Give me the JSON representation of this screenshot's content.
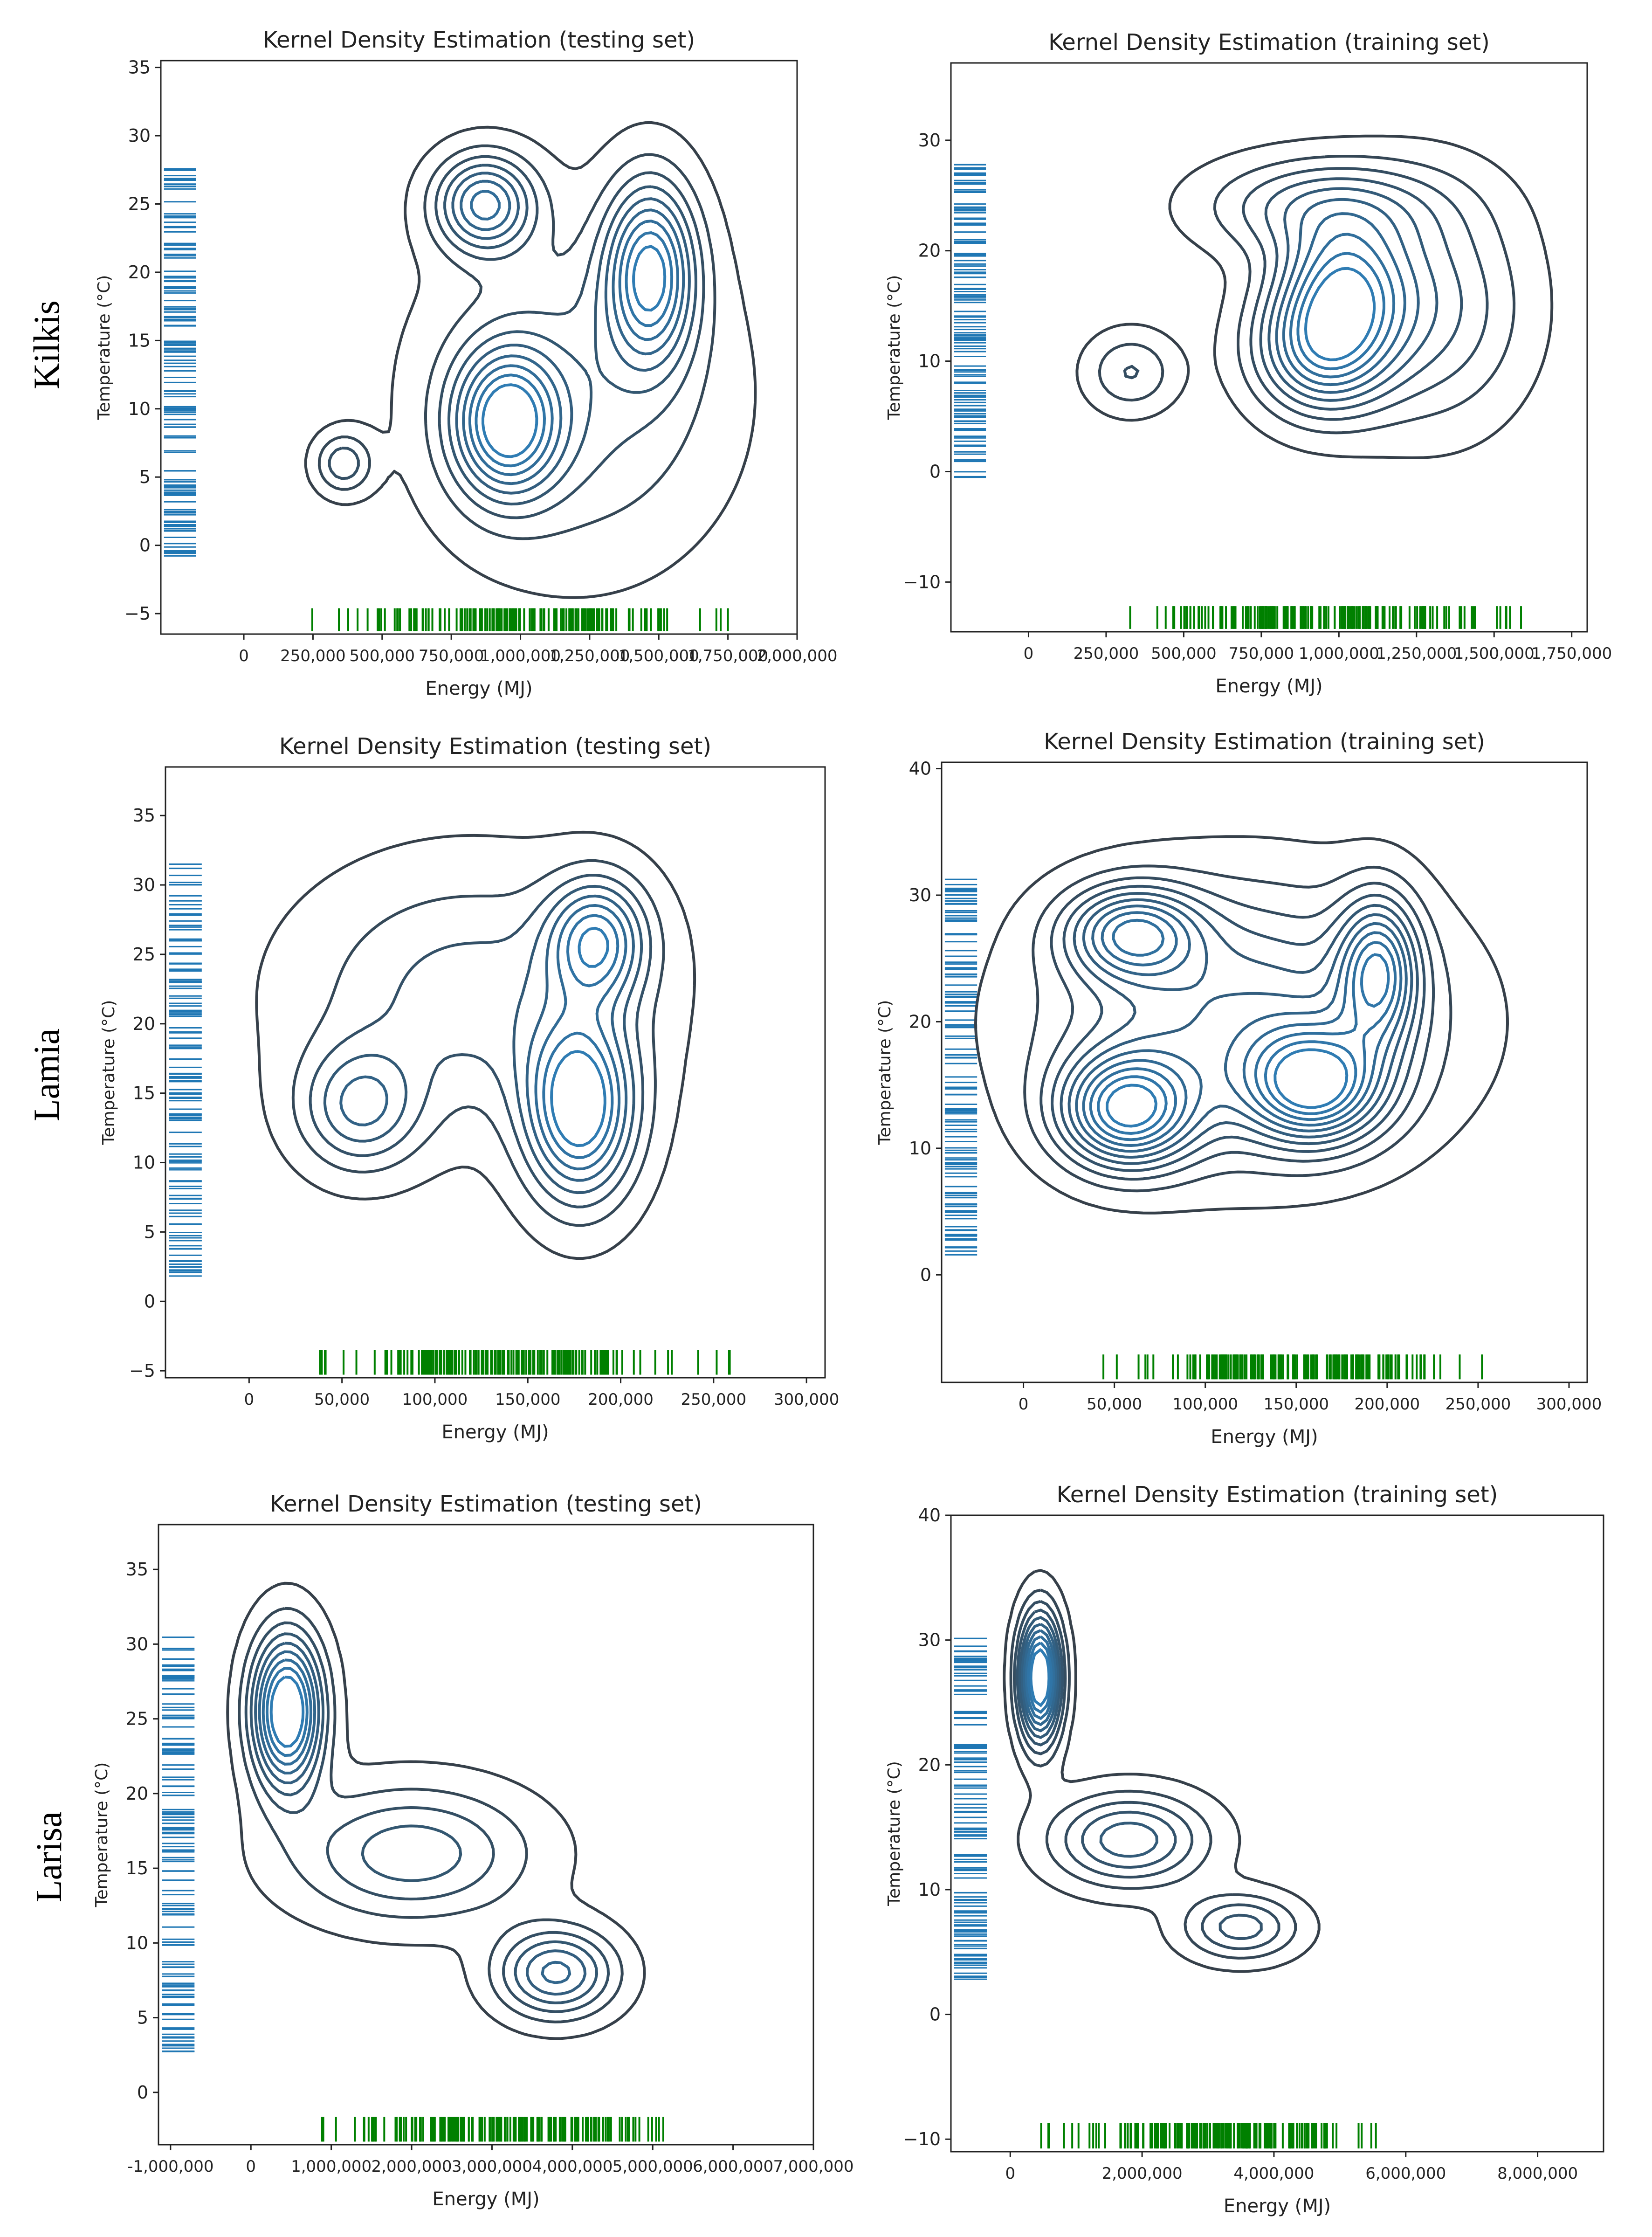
{
  "row_labels": [
    "Kilkis",
    "Lamia",
    "Larisa"
  ],
  "colors": {
    "outer_contour": "#36404a",
    "inner_contour": "#2f7cb3",
    "rug_y": "#1f77b4",
    "rug_x": "#008000"
  },
  "chart_data": [
    {
      "type": "kde-contour",
      "region": "Kilkis",
      "title": "Kernel Density Estimation (testing set)",
      "xlabel": "Energy (MJ)",
      "ylabel": "Temperature (°C)",
      "xlim": [
        -300000,
        2000000
      ],
      "ylim": [
        -6.5,
        35.5
      ],
      "xticks": [
        0,
        250000,
        500000,
        750000,
        1000000,
        1250000,
        1500000,
        1750000,
        2000000
      ],
      "xtick_labels": [
        "0",
        "250,000",
        "500,000",
        "750,000",
        "1,000,000",
        "1,250,000",
        "1,500,000",
        "1,750,000",
        "2,000,000"
      ],
      "yticks": [
        -5,
        0,
        5,
        10,
        15,
        20,
        25,
        30,
        35
      ],
      "ytick_labels": [
        "−5",
        "0",
        "5",
        "10",
        "15",
        "20",
        "25",
        "30",
        "35"
      ],
      "rug_x_range": [
        150000,
        1750000
      ],
      "rug_y_range": [
        -1,
        28
      ],
      "peaks": [
        {
          "x": 950000,
          "y": 9,
          "sx": 130000,
          "sy": 3.6,
          "w": 1.0
        },
        {
          "x": 1470000,
          "y": 20,
          "sx": 110000,
          "sy": 4.5,
          "w": 1.0
        },
        {
          "x": 870000,
          "y": 25,
          "sx": 120000,
          "sy": 2.4,
          "w": 0.8
        },
        {
          "x": 360000,
          "y": 6,
          "sx": 70000,
          "sy": 1.5,
          "w": 0.38
        },
        {
          "x": 1200000,
          "y": 11,
          "sx": 350000,
          "sy": 8,
          "w": 0.35
        }
      ],
      "levels": 9
    },
    {
      "type": "kde-contour",
      "region": "Kilkis",
      "title": "Kernel Density Estimation (training set)",
      "xlabel": "Energy (MJ)",
      "ylabel": "Temperature (°C)",
      "xlim": [
        -250000,
        1800000
      ],
      "ylim": [
        -14.5,
        37
      ],
      "xticks": [
        0,
        250000,
        500000,
        750000,
        1000000,
        1250000,
        1500000,
        1750000
      ],
      "xtick_labels": [
        "0",
        "250,000",
        "500,000",
        "750,000",
        "1,000,000",
        "1,250,000",
        "1,500,000",
        "1,750,000"
      ],
      "yticks": [
        -10,
        0,
        10,
        20,
        30
      ],
      "ytick_labels": [
        "−10",
        "0",
        "10",
        "20",
        "30"
      ],
      "rug_x_range": [
        150000,
        1700000
      ],
      "rug_y_range": [
        -1,
        28
      ],
      "peaks": [
        {
          "x": 950000,
          "y": 11,
          "sx": 150000,
          "sy": 4,
          "w": 1.0
        },
        {
          "x": 1010000,
          "y": 17,
          "sx": 140000,
          "sy": 4,
          "w": 0.9
        },
        {
          "x": 950000,
          "y": 24,
          "sx": 250000,
          "sy": 3,
          "w": 0.55
        },
        {
          "x": 330000,
          "y": 9,
          "sx": 100000,
          "sy": 2.5,
          "w": 0.35
        },
        {
          "x": 1300000,
          "y": 15,
          "sx": 200000,
          "sy": 7,
          "w": 0.5
        }
      ],
      "levels": 10
    },
    {
      "type": "kde-contour",
      "region": "Lamia",
      "title": "Kernel Density Estimation (testing set)",
      "xlabel": "Energy (MJ)",
      "ylabel": "Temperature (°C)",
      "xlim": [
        -45000,
        310000
      ],
      "ylim": [
        -5.5,
        38.5
      ],
      "xticks": [
        0,
        50000,
        100000,
        150000,
        200000,
        250000,
        300000
      ],
      "xtick_labels": [
        "0",
        "50,000",
        "100,000",
        "150,000",
        "200,000",
        "250,000",
        "300,000"
      ],
      "yticks": [
        -5,
        0,
        5,
        10,
        15,
        20,
        25,
        30,
        35
      ],
      "ytick_labels": [
        "−5",
        "0",
        "5",
        "10",
        "15",
        "20",
        "25",
        "30",
        "35"
      ],
      "rug_x_range": [
        10000,
        270000
      ],
      "rug_y_range": [
        1.5,
        31.5
      ],
      "peaks": [
        {
          "x": 178000,
          "y": 14,
          "sx": 20000,
          "sy": 4.5,
          "w": 1.0
        },
        {
          "x": 187000,
          "y": 26,
          "sx": 18000,
          "sy": 3,
          "w": 0.75
        },
        {
          "x": 60000,
          "y": 14,
          "sx": 22000,
          "sy": 3,
          "w": 0.5
        },
        {
          "x": 120000,
          "y": 22,
          "sx": 60000,
          "sy": 6,
          "w": 0.35
        }
      ],
      "levels": 8
    },
    {
      "type": "kde-contour",
      "region": "Lamia",
      "title": "Kernel Density Estimation (training set)",
      "xlabel": "Energy (MJ)",
      "ylabel": "Temperature (°C)",
      "xlim": [
        -45000,
        310000
      ],
      "ylim": [
        -8.5,
        40.5
      ],
      "xticks": [
        0,
        50000,
        100000,
        150000,
        200000,
        250000,
        300000
      ],
      "xtick_labels": [
        "0",
        "50,000",
        "100,000",
        "150,000",
        "200,000",
        "250,000",
        "300,000"
      ],
      "yticks": [
        0,
        10,
        20,
        30,
        40
      ],
      "ytick_labels": [
        "0",
        "10",
        "20",
        "30",
        "40"
      ],
      "rug_x_range": [
        10000,
        270000
      ],
      "rug_y_range": [
        1.5,
        31.5
      ],
      "peaks": [
        {
          "x": 57000,
          "y": 13,
          "sx": 25000,
          "sy": 3,
          "w": 1.0
        },
        {
          "x": 160000,
          "y": 15,
          "sx": 25000,
          "sy": 3,
          "w": 0.95
        },
        {
          "x": 195000,
          "y": 24,
          "sx": 15000,
          "sy": 4,
          "w": 0.8
        },
        {
          "x": 60000,
          "y": 27,
          "sx": 25000,
          "sy": 2.5,
          "w": 0.75
        },
        {
          "x": 120000,
          "y": 20,
          "sx": 70000,
          "sy": 7,
          "w": 0.6
        }
      ],
      "levels": 11
    },
    {
      "type": "kde-contour",
      "region": "Larisa",
      "title": "Kernel Density Estimation (testing set)",
      "xlabel": "Energy (MJ)",
      "ylabel": "Temperature (°C)",
      "xlim": [
        -1150000,
        7000000
      ],
      "ylim": [
        -3.5,
        38
      ],
      "xticks": [
        -1000000,
        0,
        1000000,
        2000000,
        3000000,
        4000000,
        5000000,
        6000000,
        7000000
      ],
      "xtick_labels": [
        "-1,000,000",
        "0",
        "1,000,000",
        "2,000,000",
        "3,000,000",
        "4,000,000",
        "5,000,000",
        "6,000,000",
        "7,000,000"
      ],
      "yticks": [
        0,
        5,
        10,
        15,
        20,
        25,
        30,
        35
      ],
      "ytick_labels": [
        "0",
        "5",
        "10",
        "15",
        "20",
        "25",
        "30",
        "35"
      ],
      "rug_x_range": [
        250000,
        5800000
      ],
      "rug_y_range": [
        2.5,
        30.5
      ],
      "peaks": [
        {
          "x": 450000,
          "y": 25.5,
          "sx": 300000,
          "sy": 3.5,
          "w": 1.0
        },
        {
          "x": 3800000,
          "y": 8,
          "sx": 500000,
          "sy": 2,
          "w": 0.55
        },
        {
          "x": 2000000,
          "y": 16,
          "sx": 1000000,
          "sy": 3,
          "w": 0.4
        }
      ],
      "levels": 9
    },
    {
      "type": "kde-contour",
      "region": "Larisa",
      "title": "Kernel Density Estimation (training set)",
      "xlabel": "Energy (MJ)",
      "ylabel": "Temperature (°C)",
      "xlim": [
        -900000,
        9000000
      ],
      "ylim": [
        -11,
        40
      ],
      "xticks": [
        0,
        2000000,
        4000000,
        6000000,
        8000000
      ],
      "xtick_labels": [
        "0",
        "2,000,000",
        "4,000,000",
        "6,000,000",
        "8,000,000"
      ],
      "yticks": [
        -10,
        0,
        10,
        20,
        30,
        40
      ],
      "ytick_labels": [
        "−10",
        "0",
        "10",
        "20",
        "30",
        "40"
      ],
      "rug_x_range": [
        250000,
        5800000
      ],
      "rug_y_range": [
        2.5,
        30.5
      ],
      "peaks": [
        {
          "x": 450000,
          "y": 27,
          "sx": 220000,
          "sy": 3.5,
          "w": 1.0
        },
        {
          "x": 1800000,
          "y": 14,
          "sx": 800000,
          "sy": 2.5,
          "w": 0.45
        },
        {
          "x": 3500000,
          "y": 7,
          "sx": 600000,
          "sy": 1.8,
          "w": 0.35
        }
      ],
      "levels": 10
    }
  ]
}
